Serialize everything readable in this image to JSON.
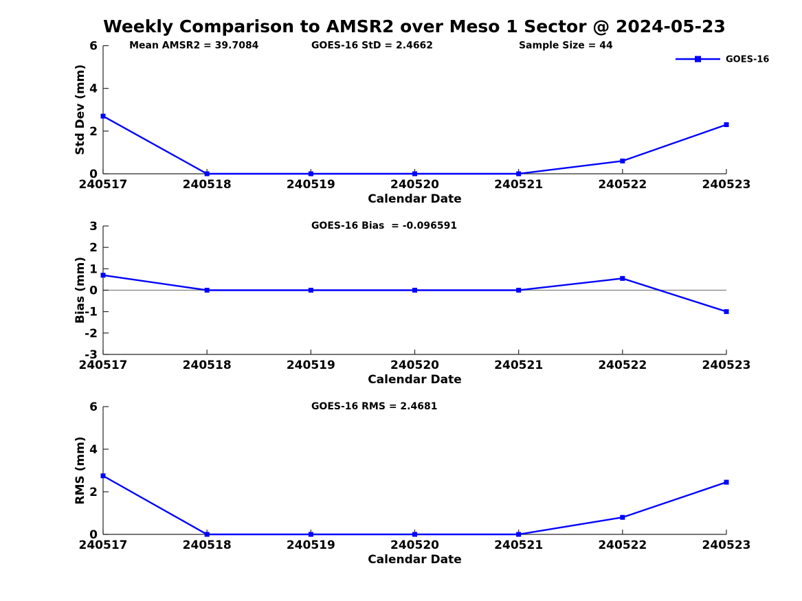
{
  "title": "Weekly Comparison to AMSR2 over Meso 1 Sector @ 2024-05-23",
  "legend": {
    "label": "GOES-16"
  },
  "colors": {
    "line": "#0000FF",
    "axis": "#262626",
    "zero_line": "#808080",
    "text": "#000000",
    "background": "#FFFFFF"
  },
  "chart_data": [
    {
      "type": "line",
      "id": "std-dev",
      "ylabel": "Std Dev (mm)",
      "xlabel": "Calendar Date",
      "ylim": [
        0,
        6
      ],
      "yticks": [
        0,
        2,
        4,
        6
      ],
      "grid": false,
      "legend_position": "top-right",
      "categories": [
        "240517",
        "240518",
        "240519",
        "240520",
        "240521",
        "240522",
        "240523"
      ],
      "series": [
        {
          "name": "GOES-16",
          "marker": "square",
          "values": [
            2.7,
            0,
            0,
            0,
            0,
            0.6,
            2.3
          ]
        }
      ],
      "annotations": [
        {
          "text": "Mean AMSR2 = 39.7084",
          "xfrac": 0.042
        },
        {
          "text": "GOES-16 StD = 2.4662",
          "xfrac": 0.334
        },
        {
          "text": "Sample Size = 44",
          "xfrac": 0.667
        }
      ],
      "zero_line": false,
      "show_legend": true
    },
    {
      "type": "line",
      "id": "bias",
      "ylabel": "Bias (mm)",
      "xlabel": "Calendar Date",
      "ylim": [
        -3,
        3
      ],
      "yticks": [
        -3,
        -2,
        -1,
        0,
        1,
        2,
        3
      ],
      "grid": false,
      "categories": [
        "240517",
        "240518",
        "240519",
        "240520",
        "240521",
        "240522",
        "240523"
      ],
      "series": [
        {
          "name": "GOES-16",
          "marker": "square",
          "values": [
            0.7,
            0,
            0,
            0,
            0,
            0.55,
            -1.0
          ]
        }
      ],
      "annotations": [
        {
          "text": "GOES-16 Bias  = -0.096591",
          "xfrac": 0.334
        }
      ],
      "zero_line": true,
      "show_legend": false
    },
    {
      "type": "line",
      "id": "rms",
      "ylabel": "RMS (mm)",
      "xlabel": "Calendar Date",
      "ylim": [
        0,
        6
      ],
      "yticks": [
        0,
        2,
        4,
        6
      ],
      "grid": false,
      "categories": [
        "240517",
        "240518",
        "240519",
        "240520",
        "240521",
        "240522",
        "240523"
      ],
      "series": [
        {
          "name": "GOES-16",
          "marker": "square",
          "values": [
            2.75,
            0,
            0,
            0,
            0,
            0.8,
            2.45
          ]
        }
      ],
      "annotations": [
        {
          "text": "GOES-16 RMS = 2.4681",
          "xfrac": 0.334
        }
      ],
      "zero_line": false,
      "show_legend": false
    }
  ]
}
